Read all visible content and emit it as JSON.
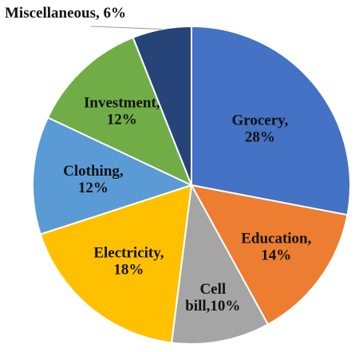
{
  "chart_data": {
    "type": "pie",
    "slices": [
      {
        "label": "Grocery",
        "value": 28,
        "color": "#4472C4",
        "text": [
          "Grocery,",
          "28%"
        ]
      },
      {
        "label": "Education",
        "value": 14,
        "color": "#ED7D31",
        "text": [
          "Education,",
          "14%"
        ]
      },
      {
        "label": "Cell bill",
        "value": 10,
        "color": "#A5A5A5",
        "text": [
          "Cell",
          "bill,10%"
        ]
      },
      {
        "label": "Electricity",
        "value": 18,
        "color": "#FFC000",
        "text": [
          "Electricity,",
          "18%"
        ]
      },
      {
        "label": "Clothing",
        "value": 12,
        "color": "#5B9BD5",
        "text": [
          "Clothing,",
          "12%"
        ]
      },
      {
        "label": "Investment",
        "value": 12,
        "color": "#70AD47",
        "text": [
          "Investment,",
          "12%"
        ]
      },
      {
        "label": "Miscellaneous",
        "value": 6,
        "color": "#264478",
        "text": [
          "Miscellaneous, 6%"
        ]
      }
    ],
    "label_color": "#111111"
  }
}
